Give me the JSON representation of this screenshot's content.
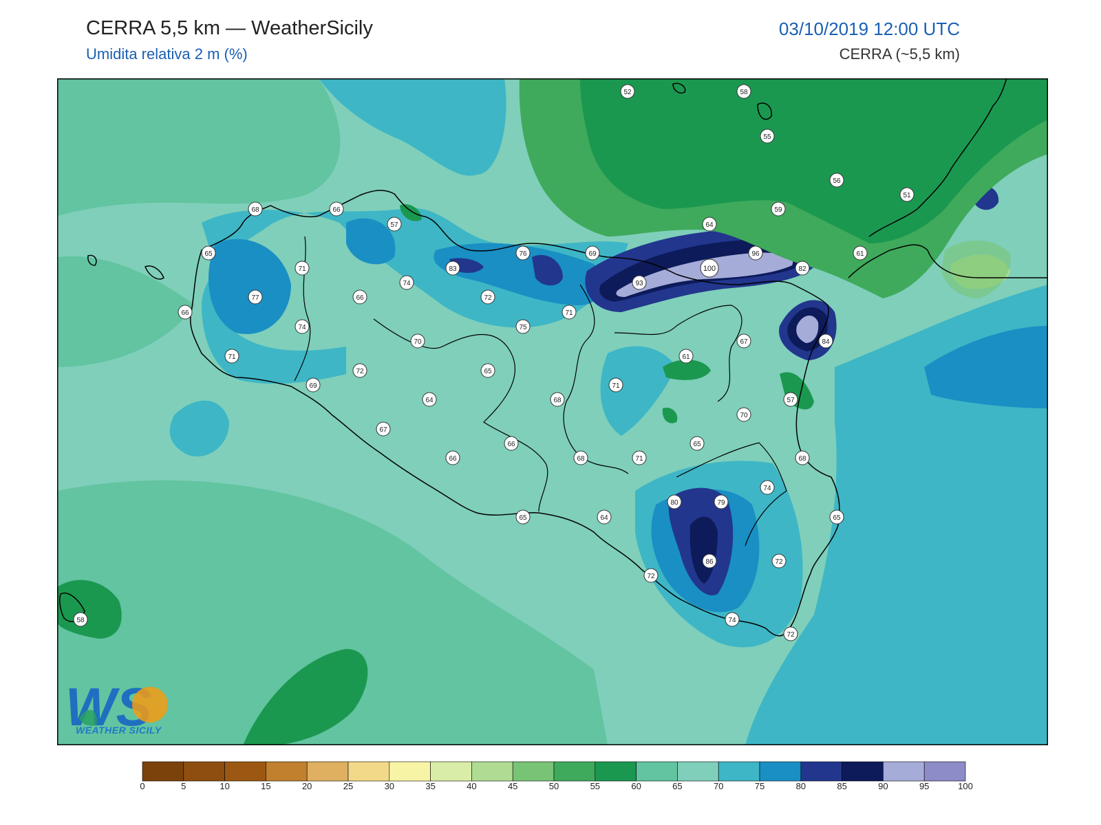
{
  "header": {
    "title": "CERRA 5,5 km — WeatherSicily",
    "subtitle": "Umidita relativa 2 m (%)",
    "datetime": "03/10/2019 12:00 UTC",
    "model": "CERRA (~5,5 km)"
  },
  "logo": {
    "letters": "WS",
    "name": "WEATHER SICILY"
  },
  "colorbar": {
    "ticks": [
      "0",
      "5",
      "10",
      "15",
      "20",
      "25",
      "30",
      "35",
      "40",
      "45",
      "50",
      "55",
      "60",
      "65",
      "70",
      "75",
      "80",
      "85",
      "90",
      "95",
      "100"
    ],
    "colors": [
      "#7b420c",
      "#8e4e10",
      "#9c5812",
      "#c0802e",
      "#deb060",
      "#f2d98a",
      "#f8f4a6",
      "#d9eda8",
      "#afdc92",
      "#78c476",
      "#3faa5c",
      "#1b9850",
      "#62c4a0",
      "#7fcfba",
      "#3eb6c6",
      "#1a8fc4",
      "#22368e",
      "#0d1b5a",
      "#a6acd8",
      "#8d8bc8"
    ]
  },
  "stations": [
    {
      "id": "s1",
      "v": "52"
    },
    {
      "id": "s2",
      "v": "58"
    },
    {
      "id": "s3",
      "v": "55"
    },
    {
      "id": "s4",
      "v": "56"
    },
    {
      "id": "s5",
      "v": "51"
    },
    {
      "id": "s6",
      "v": "59"
    },
    {
      "id": "s7",
      "v": "64"
    },
    {
      "id": "s8",
      "v": "68"
    },
    {
      "id": "s9",
      "v": "66"
    },
    {
      "id": "s10",
      "v": "57"
    },
    {
      "id": "s11",
      "v": "65"
    },
    {
      "id": "s12",
      "v": "71"
    },
    {
      "id": "s13",
      "v": "76"
    },
    {
      "id": "s14",
      "v": "69"
    },
    {
      "id": "s15",
      "v": "100"
    },
    {
      "id": "s16",
      "v": "96"
    },
    {
      "id": "s17",
      "v": "82"
    },
    {
      "id": "s18",
      "v": "61"
    },
    {
      "id": "s19",
      "v": "83"
    },
    {
      "id": "s20",
      "v": "74"
    },
    {
      "id": "s21",
      "v": "93"
    },
    {
      "id": "s22",
      "v": "77"
    },
    {
      "id": "s23",
      "v": "66"
    },
    {
      "id": "s24",
      "v": "72"
    },
    {
      "id": "s25",
      "v": "71"
    },
    {
      "id": "s26",
      "v": "66"
    },
    {
      "id": "s27",
      "v": "74"
    },
    {
      "id": "s28",
      "v": "75"
    },
    {
      "id": "s29",
      "v": "70"
    },
    {
      "id": "s30",
      "v": "67"
    },
    {
      "id": "s31",
      "v": "84"
    },
    {
      "id": "s32",
      "v": "71"
    },
    {
      "id": "s33",
      "v": "61"
    },
    {
      "id": "s34",
      "v": "72"
    },
    {
      "id": "s35",
      "v": "65"
    },
    {
      "id": "s36",
      "v": "69"
    },
    {
      "id": "s37",
      "v": "64"
    },
    {
      "id": "s38",
      "v": "68"
    },
    {
      "id": "s39",
      "v": "71"
    },
    {
      "id": "s40",
      "v": "57"
    },
    {
      "id": "s41",
      "v": "70"
    },
    {
      "id": "s42",
      "v": "67"
    },
    {
      "id": "s43",
      "v": "66"
    },
    {
      "id": "s44",
      "v": "65"
    },
    {
      "id": "s45",
      "v": "66"
    },
    {
      "id": "s46",
      "v": "68"
    },
    {
      "id": "s47",
      "v": "71"
    },
    {
      "id": "s48",
      "v": "68"
    },
    {
      "id": "s49",
      "v": "80"
    },
    {
      "id": "s50",
      "v": "79"
    },
    {
      "id": "s51",
      "v": "74"
    },
    {
      "id": "s52",
      "v": "65"
    },
    {
      "id": "s53",
      "v": "64"
    },
    {
      "id": "s54",
      "v": "65"
    },
    {
      "id": "s55",
      "v": "86"
    },
    {
      "id": "s56",
      "v": "72"
    },
    {
      "id": "s57",
      "v": "72"
    },
    {
      "id": "s58",
      "v": "74"
    },
    {
      "id": "s59",
      "v": "72"
    },
    {
      "id": "s60",
      "v": "58"
    }
  ]
}
